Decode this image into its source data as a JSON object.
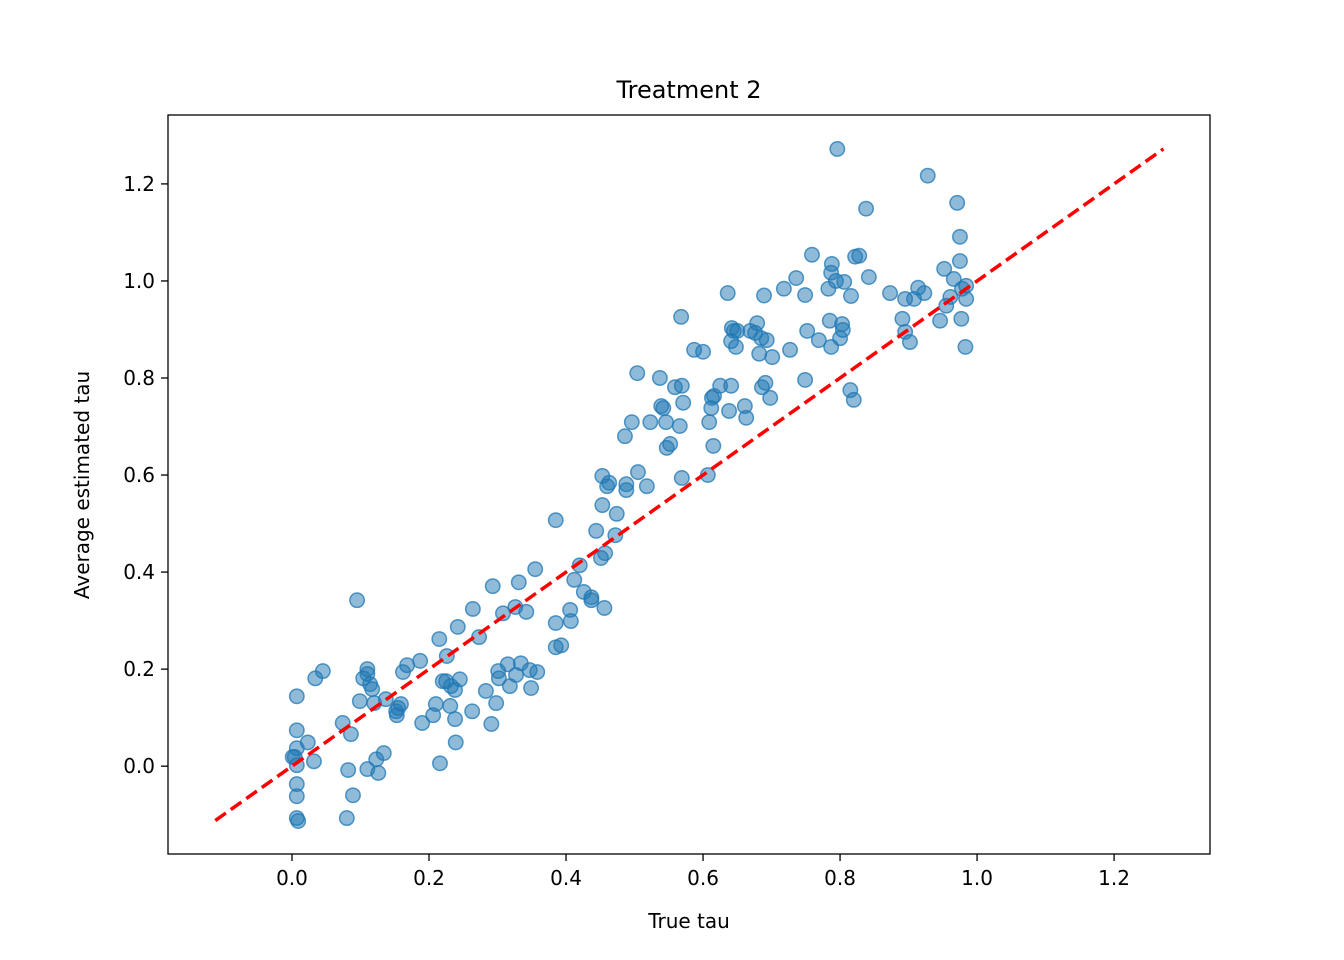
{
  "chart_data": {
    "type": "scatter",
    "title": "Treatment 2",
    "xlabel": "True tau",
    "ylabel": "Average estimated tau",
    "xlim": [
      -0.181,
      1.34
    ],
    "ylim": [
      -0.181,
      1.342
    ],
    "xticks": [
      0.0,
      0.2,
      0.4,
      0.6,
      0.8,
      1.0,
      1.2
    ],
    "yticks": [
      0.0,
      0.2,
      0.4,
      0.6,
      0.8,
      1.0,
      1.2
    ],
    "xtick_labels": [
      "0.0",
      "0.2",
      "0.4",
      "0.6",
      "0.8",
      "1.0",
      "1.2"
    ],
    "ytick_labels": [
      "0.0",
      "0.2",
      "0.4",
      "0.6",
      "0.8",
      "1.0",
      "1.2"
    ],
    "grid": false,
    "point_color": "#1f77b4",
    "point_alpha": 0.5,
    "reference_line": {
      "x": [
        -0.112,
        1.272
      ],
      "y": [
        -0.112,
        1.272
      ],
      "color": "#ff0000",
      "style": "dashed"
    },
    "points": [
      [
        0.007,
        0.144
      ],
      [
        0.007,
        0.074
      ],
      [
        0.007,
        0.037
      ],
      [
        0.004,
        0.019
      ],
      [
        0.001,
        0.019
      ],
      [
        0.007,
        0.002
      ],
      [
        0.007,
        -0.037
      ],
      [
        0.007,
        -0.062
      ],
      [
        0.007,
        -0.107
      ],
      [
        0.009,
        -0.113
      ],
      [
        0.023,
        0.049
      ],
      [
        0.032,
        0.01
      ],
      [
        0.034,
        0.181
      ],
      [
        0.045,
        0.196
      ],
      [
        0.074,
        0.089
      ],
      [
        0.08,
        -0.107
      ],
      [
        0.082,
        -0.008
      ],
      [
        0.086,
        0.066
      ],
      [
        0.089,
        -0.06
      ],
      [
        0.095,
        0.342
      ],
      [
        0.099,
        0.134
      ],
      [
        0.104,
        0.181
      ],
      [
        0.11,
        0.2
      ],
      [
        0.11,
        0.19
      ],
      [
        0.11,
        -0.006
      ],
      [
        0.114,
        0.169
      ],
      [
        0.117,
        0.159
      ],
      [
        0.12,
        0.13
      ],
      [
        0.123,
        0.014
      ],
      [
        0.126,
        -0.014
      ],
      [
        0.134,
        0.027
      ],
      [
        0.137,
        0.138
      ],
      [
        0.152,
        0.113
      ],
      [
        0.153,
        0.105
      ],
      [
        0.155,
        0.12
      ],
      [
        0.159,
        0.128
      ],
      [
        0.162,
        0.194
      ],
      [
        0.168,
        0.208
      ],
      [
        0.187,
        0.217
      ],
      [
        0.19,
        0.089
      ],
      [
        0.206,
        0.105
      ],
      [
        0.21,
        0.128
      ],
      [
        0.215,
        0.262
      ],
      [
        0.216,
        0.006
      ],
      [
        0.22,
        0.175
      ],
      [
        0.225,
        0.175
      ],
      [
        0.226,
        0.227
      ],
      [
        0.231,
        0.124
      ],
      [
        0.232,
        0.165
      ],
      [
        0.238,
        0.157
      ],
      [
        0.238,
        0.097
      ],
      [
        0.239,
        0.049
      ],
      [
        0.242,
        0.287
      ],
      [
        0.245,
        0.179
      ],
      [
        0.263,
        0.113
      ],
      [
        0.264,
        0.324
      ],
      [
        0.273,
        0.266
      ],
      [
        0.283,
        0.155
      ],
      [
        0.291,
        0.087
      ],
      [
        0.293,
        0.371
      ],
      [
        0.298,
        0.13
      ],
      [
        0.301,
        0.196
      ],
      [
        0.302,
        0.181
      ],
      [
        0.308,
        0.315
      ],
      [
        0.315,
        0.21
      ],
      [
        0.318,
        0.165
      ],
      [
        0.326,
        0.328
      ],
      [
        0.327,
        0.188
      ],
      [
        0.331,
        0.379
      ],
      [
        0.334,
        0.212
      ],
      [
        0.342,
        0.318
      ],
      [
        0.347,
        0.198
      ],
      [
        0.349,
        0.161
      ],
      [
        0.355,
        0.406
      ],
      [
        0.358,
        0.194
      ],
      [
        0.385,
        0.507
      ],
      [
        0.385,
        0.295
      ],
      [
        0.385,
        0.245
      ],
      [
        0.393,
        0.249
      ],
      [
        0.406,
        0.322
      ],
      [
        0.407,
        0.299
      ],
      [
        0.412,
        0.384
      ],
      [
        0.42,
        0.414
      ],
      [
        0.426,
        0.359
      ],
      [
        0.437,
        0.342
      ],
      [
        0.437,
        0.348
      ],
      [
        0.444,
        0.485
      ],
      [
        0.451,
        0.429
      ],
      [
        0.453,
        0.598
      ],
      [
        0.453,
        0.538
      ],
      [
        0.456,
        0.326
      ],
      [
        0.457,
        0.439
      ],
      [
        0.46,
        0.577
      ],
      [
        0.463,
        0.584
      ],
      [
        0.472,
        0.476
      ],
      [
        0.474,
        0.52
      ],
      [
        0.486,
        0.68
      ],
      [
        0.488,
        0.581
      ],
      [
        0.488,
        0.569
      ],
      [
        0.496,
        0.709
      ],
      [
        0.504,
        0.81
      ],
      [
        0.505,
        0.606
      ],
      [
        0.518,
        0.577
      ],
      [
        0.523,
        0.709
      ],
      [
        0.537,
        0.8
      ],
      [
        0.539,
        0.742
      ],
      [
        0.542,
        0.738
      ],
      [
        0.546,
        0.709
      ],
      [
        0.547,
        0.656
      ],
      [
        0.552,
        0.664
      ],
      [
        0.559,
        0.781
      ],
      [
        0.566,
        0.701
      ],
      [
        0.568,
        0.926
      ],
      [
        0.569,
        0.784
      ],
      [
        0.571,
        0.749
      ],
      [
        0.569,
        0.594
      ],
      [
        0.587,
        0.858
      ],
      [
        0.6,
        0.854
      ],
      [
        0.607,
        0.6
      ],
      [
        0.609,
        0.709
      ],
      [
        0.612,
        0.738
      ],
      [
        0.613,
        0.759
      ],
      [
        0.616,
        0.763
      ],
      [
        0.615,
        0.66
      ],
      [
        0.625,
        0.784
      ],
      [
        0.636,
        0.975
      ],
      [
        0.638,
        0.732
      ],
      [
        0.641,
        0.784
      ],
      [
        0.641,
        0.876
      ],
      [
        0.642,
        0.903
      ],
      [
        0.645,
        0.897
      ],
      [
        0.648,
        0.864
      ],
      [
        0.65,
        0.897
      ],
      [
        0.661,
        0.742
      ],
      [
        0.663,
        0.718
      ],
      [
        0.669,
        0.897
      ],
      [
        0.676,
        0.893
      ],
      [
        0.679,
        0.913
      ],
      [
        0.682,
        0.85
      ],
      [
        0.685,
        0.882
      ],
      [
        0.686,
        0.781
      ],
      [
        0.691,
        0.79
      ],
      [
        0.689,
        0.97
      ],
      [
        0.693,
        0.878
      ],
      [
        0.698,
        0.759
      ],
      [
        0.701,
        0.843
      ],
      [
        0.718,
        0.984
      ],
      [
        0.727,
        0.858
      ],
      [
        0.736,
        1.006
      ],
      [
        0.749,
        0.971
      ],
      [
        0.749,
        0.796
      ],
      [
        0.752,
        0.897
      ],
      [
        0.759,
        1.054
      ],
      [
        0.769,
        0.878
      ],
      [
        0.783,
        0.984
      ],
      [
        0.785,
        0.918
      ],
      [
        0.787,
        0.864
      ],
      [
        0.787,
        1.017
      ],
      [
        0.788,
        1.035
      ],
      [
        0.794,
        1.0
      ],
      [
        0.8,
        0.882
      ],
      [
        0.803,
        0.911
      ],
      [
        0.804,
        0.899
      ],
      [
        0.806,
        0.998
      ],
      [
        0.815,
        0.775
      ],
      [
        0.816,
        0.969
      ],
      [
        0.82,
        0.755
      ],
      [
        0.822,
        1.05
      ],
      [
        0.828,
        1.052
      ],
      [
        0.838,
        1.149
      ],
      [
        0.842,
        1.008
      ],
      [
        0.796,
        1.272
      ],
      [
        0.873,
        0.975
      ],
      [
        0.891,
        0.922
      ],
      [
        0.895,
        0.963
      ],
      [
        0.895,
        0.895
      ],
      [
        0.902,
        0.874
      ],
      [
        0.908,
        0.963
      ],
      [
        0.914,
        0.986
      ],
      [
        0.923,
        0.975
      ],
      [
        0.928,
        1.217
      ],
      [
        0.946,
        0.918
      ],
      [
        0.952,
        1.025
      ],
      [
        0.955,
        0.949
      ],
      [
        0.961,
        0.967
      ],
      [
        0.966,
        1.004
      ],
      [
        0.971,
        1.161
      ],
      [
        0.975,
        1.041
      ],
      [
        0.975,
        1.091
      ],
      [
        0.977,
        0.922
      ],
      [
        0.978,
        0.984
      ],
      [
        0.983,
        0.864
      ],
      [
        0.984,
        0.963
      ],
      [
        0.984,
        0.99
      ]
    ]
  }
}
